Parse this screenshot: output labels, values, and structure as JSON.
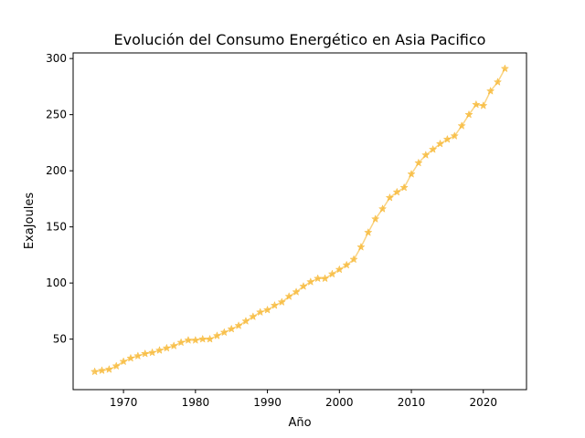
{
  "chart_data": {
    "type": "line",
    "title": "Evolución del Consumo Energético en Asia Pacifico",
    "xlabel": "Año",
    "ylabel": "ExaJoules",
    "xlim": [
      1963,
      2026
    ],
    "ylim": [
      5,
      305
    ],
    "xticks": [
      1970,
      1980,
      1990,
      2000,
      2010,
      2020
    ],
    "yticks": [
      50,
      100,
      150,
      200,
      250,
      300
    ],
    "grid": false,
    "legend": "none",
    "marker": "star",
    "color": "#f7b731",
    "series": [
      {
        "x": [
          1966,
          1967,
          1968,
          1969,
          1970,
          1971,
          1972,
          1973,
          1974,
          1975,
          1976,
          1977,
          1978,
          1979,
          1980,
          1981,
          1982,
          1983,
          1984,
          1985,
          1986,
          1987,
          1988,
          1989,
          1990,
          1991,
          1992,
          1993,
          1994,
          1995,
          1996,
          1997,
          1998,
          1999,
          2000,
          2001,
          2002,
          2003,
          2004,
          2005,
          2006,
          2007,
          2008,
          2009,
          2010,
          2011,
          2012,
          2013,
          2014,
          2015,
          2016,
          2017,
          2018,
          2019,
          2020,
          2021,
          2022,
          2023
        ],
        "values": [
          21,
          22,
          23,
          26,
          30,
          33,
          35,
          37,
          38,
          40,
          42,
          44,
          47,
          49,
          49,
          50,
          50,
          53,
          56,
          59,
          62,
          66,
          70,
          74,
          76,
          80,
          83,
          88,
          92,
          97,
          101,
          104,
          104,
          108,
          112,
          116,
          121,
          132,
          145,
          157,
          166,
          176,
          181,
          185,
          197,
          207,
          214,
          219,
          224,
          228,
          231,
          240,
          250,
          259,
          258,
          271,
          279,
          291
        ]
      }
    ]
  }
}
